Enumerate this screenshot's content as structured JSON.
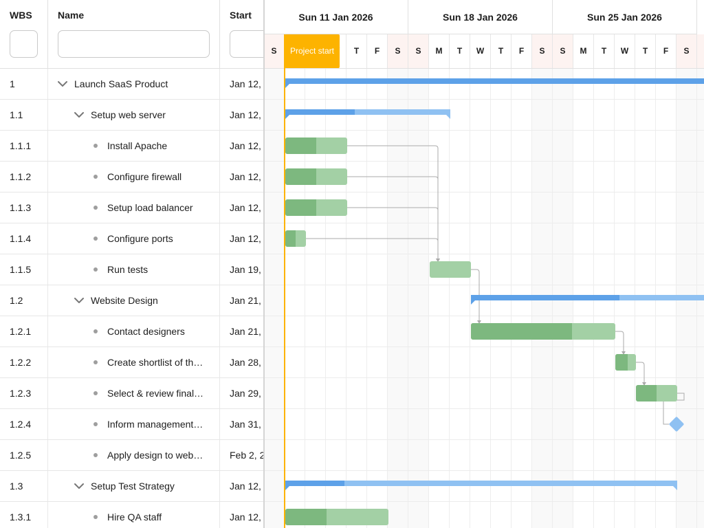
{
  "grid": {
    "columns": {
      "wbs": "WBS",
      "name": "Name",
      "start": "Start"
    },
    "rows": [
      {
        "wbs": "1",
        "name": "Launch SaaS Product",
        "start": "Jan 12,",
        "level": 0,
        "parent": true,
        "expanded": true
      },
      {
        "wbs": "1.1",
        "name": "Setup web server",
        "start": "Jan 12,",
        "level": 1,
        "parent": true,
        "expanded": true
      },
      {
        "wbs": "1.1.1",
        "name": "Install Apache",
        "start": "Jan 12,",
        "level": 2,
        "parent": false
      },
      {
        "wbs": "1.1.2",
        "name": "Configure firewall",
        "start": "Jan 12,",
        "level": 2,
        "parent": false
      },
      {
        "wbs": "1.1.3",
        "name": "Setup load balancer",
        "start": "Jan 12,",
        "level": 2,
        "parent": false
      },
      {
        "wbs": "1.1.4",
        "name": "Configure ports",
        "start": "Jan 12,",
        "level": 2,
        "parent": false
      },
      {
        "wbs": "1.1.5",
        "name": "Run tests",
        "start": "Jan 19,",
        "level": 2,
        "parent": false
      },
      {
        "wbs": "1.2",
        "name": "Website Design",
        "start": "Jan 21,",
        "level": 1,
        "parent": true,
        "expanded": true
      },
      {
        "wbs": "1.2.1",
        "name": "Contact designers",
        "start": "Jan 21,",
        "level": 2,
        "parent": false
      },
      {
        "wbs": "1.2.2",
        "name": "Create shortlist of th…",
        "start": "Jan 28,",
        "level": 2,
        "parent": false
      },
      {
        "wbs": "1.2.3",
        "name": "Select & review final…",
        "start": "Jan 29,",
        "level": 2,
        "parent": false
      },
      {
        "wbs": "1.2.4",
        "name": "Inform management…",
        "start": "Jan 31,",
        "level": 2,
        "parent": false
      },
      {
        "wbs": "1.2.5",
        "name": "Apply design to web…",
        "start": "Feb 2, 2",
        "level": 2,
        "parent": false
      },
      {
        "wbs": "1.3",
        "name": "Setup Test Strategy",
        "start": "Jan 12,",
        "level": 1,
        "parent": true,
        "expanded": true
      },
      {
        "wbs": "1.3.1",
        "name": "Hire QA staff",
        "start": "Jan 12,",
        "level": 2,
        "parent": false
      }
    ]
  },
  "timeline": {
    "weeks": [
      "Sun 11 Jan 2026",
      "Sun 18 Jan 2026",
      "Sun 25 Jan 2026"
    ],
    "days": [
      "S",
      "M",
      "T",
      "W",
      "T",
      "F",
      "S",
      "S",
      "M",
      "T",
      "W",
      "T",
      "F",
      "S",
      "S",
      "M",
      "T",
      "W",
      "T",
      "F",
      "S",
      "S"
    ],
    "weekend_days": [
      0,
      6,
      7,
      13,
      14,
      20,
      21
    ],
    "project_start_label": "Project start",
    "project_start_day": 1,
    "bars": [
      {
        "row": 0,
        "type": "parent",
        "start": 1,
        "end": 22,
        "progress": 1.0
      },
      {
        "row": 1,
        "type": "parent",
        "start": 1,
        "end": 9,
        "progress": 0.42
      },
      {
        "row": 2,
        "type": "task",
        "start": 1,
        "end": 4,
        "progress": 0.5
      },
      {
        "row": 3,
        "type": "task",
        "start": 1,
        "end": 4,
        "progress": 0.5
      },
      {
        "row": 4,
        "type": "task",
        "start": 1,
        "end": 4,
        "progress": 0.5
      },
      {
        "row": 5,
        "type": "task",
        "start": 1,
        "end": 2,
        "progress": 0.5
      },
      {
        "row": 6,
        "type": "task",
        "start": 8,
        "end": 10,
        "progress": 0
      },
      {
        "row": 7,
        "type": "parent",
        "start": 10,
        "end": 22,
        "progress": 0.6
      },
      {
        "row": 8,
        "type": "task",
        "start": 10,
        "end": 17,
        "progress": 0.7
      },
      {
        "row": 9,
        "type": "task",
        "start": 17,
        "end": 18,
        "progress": 0.6
      },
      {
        "row": 10,
        "type": "task",
        "start": 18,
        "end": 20,
        "progress": 0.5
      },
      {
        "row": 11,
        "type": "milestone",
        "start": 20
      },
      {
        "row": 13,
        "type": "parent",
        "start": 1,
        "end": 20,
        "progress": 0.15
      },
      {
        "row": 14,
        "type": "task",
        "start": 1,
        "end": 6,
        "progress": 0.4
      }
    ],
    "dependencies": [
      {
        "from": 2,
        "to": 6
      },
      {
        "from": 3,
        "to": 6
      },
      {
        "from": 4,
        "to": 6
      },
      {
        "from": 5,
        "to": 6
      },
      {
        "from": 6,
        "to": 8
      },
      {
        "from": 8,
        "to": 9
      },
      {
        "from": 9,
        "to": 10
      },
      {
        "from": 10,
        "to": 11
      }
    ],
    "colors": {
      "task": "#a3d0a5",
      "task_progress": "#7db87f",
      "parent": "#8fc1f2",
      "parent_progress": "#5da1e8",
      "project_line": "#fdb300",
      "dependency": "#aaaaaa"
    }
  }
}
